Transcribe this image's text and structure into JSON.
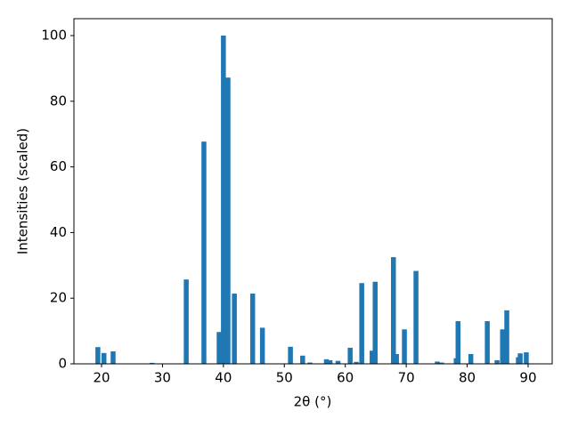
{
  "chart_data": {
    "type": "bar",
    "x_label": "2θ (°)",
    "y_label": "Intensities (scaled)",
    "color": "#1f77b4",
    "x": [
      19.4,
      20.4,
      21.9,
      28.3,
      33.9,
      36.8,
      39.3,
      40.0,
      40.75,
      41.8,
      44.8,
      46.4,
      51.0,
      53.0,
      54.2,
      56.9,
      57.5,
      58.8,
      60.8,
      61.8,
      62.7,
      64.4,
      64.9,
      67.9,
      68.4,
      69.7,
      71.6,
      75.1,
      75.8,
      78.2,
      78.5,
      80.6,
      83.3,
      84.9,
      85.8,
      86.5,
      88.4,
      88.7,
      89.7
    ],
    "values": [
      5.1,
      3.3,
      3.8,
      0.3,
      25.7,
      67.7,
      9.7,
      100,
      87.2,
      21.4,
      21.4,
      11.0,
      5.2,
      2.5,
      0.4,
      1.4,
      1.1,
      0.9,
      4.9,
      0.6,
      24.6,
      4.0,
      25.0,
      32.5,
      3.0,
      10.5,
      28.3,
      0.7,
      0.4,
      1.7,
      13.0,
      3.0,
      13.0,
      1.1,
      10.5,
      16.3,
      2.0,
      3.2,
      3.5
    ],
    "xlim": [
      15.47,
      93.95
    ],
    "ylim": [
      0,
      105.15
    ],
    "xticks": [
      20,
      30,
      40,
      50,
      60,
      70,
      80,
      90
    ],
    "yticks": [
      0,
      20,
      40,
      60,
      80,
      100
    ]
  }
}
